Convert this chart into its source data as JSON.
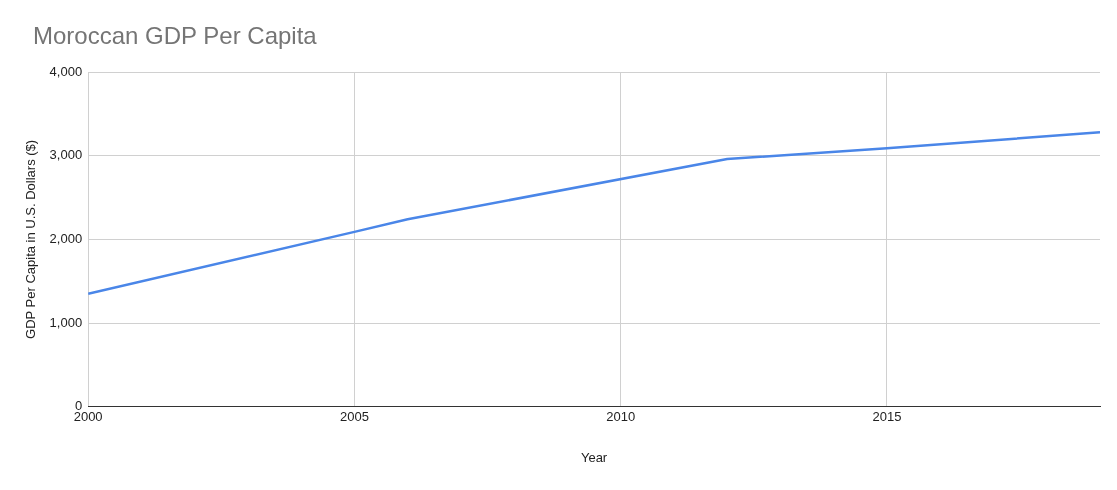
{
  "chart_data": {
    "type": "line",
    "title": "Moroccan GDP Per Capita",
    "xlabel": "Year",
    "ylabel": "GDP Per Capita in U.S. Dollars ($)",
    "x": [
      2000,
      2005,
      2006,
      2012,
      2015,
      2019
    ],
    "series": [
      {
        "color": "#4a86e8",
        "values": [
          1350,
          2090,
          2240,
          2960,
          3090,
          3280
        ]
      }
    ],
    "xlim": [
      2000,
      2019
    ],
    "xticks": [
      2000,
      2005,
      2010,
      2015
    ],
    "ylim": [
      0,
      4000
    ],
    "yticks": [
      {
        "value": 0,
        "label": "0"
      },
      {
        "value": 1000,
        "label": "1,000"
      },
      {
        "value": 2000,
        "label": "2,000"
      },
      {
        "value": 3000,
        "label": "3,000"
      },
      {
        "value": 4000,
        "label": "4,000"
      }
    ],
    "grid": true,
    "legend": false,
    "marker": "none",
    "line_style": "solid"
  }
}
